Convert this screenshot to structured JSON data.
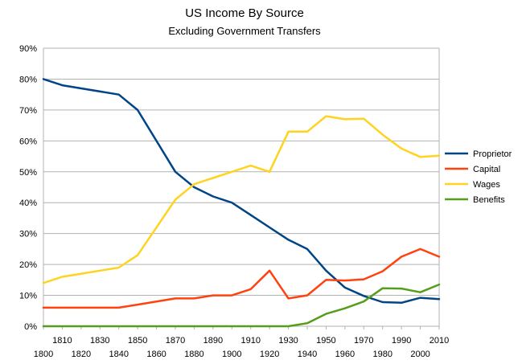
{
  "chart_data": {
    "type": "line",
    "title": "US Income By Source",
    "subtitle": "Excluding Government Transfers",
    "x_ticks": [
      1800,
      1810,
      1820,
      1830,
      1840,
      1850,
      1860,
      1870,
      1880,
      1890,
      1900,
      1910,
      1920,
      1930,
      1940,
      1950,
      1960,
      1970,
      1980,
      1990,
      2000,
      2010
    ],
    "x_tick_labels": [
      "1800",
      "1810",
      "1820",
      "1830",
      "1840",
      "1850",
      "1860",
      "1870",
      "1880",
      "1890",
      "1900",
      "1910",
      "1920",
      "1930",
      "1940",
      "1950",
      "1960",
      "1970",
      "1980",
      "1990",
      "2000",
      "2010"
    ],
    "xlim": [
      1800,
      2010
    ],
    "ylim": [
      0,
      90
    ],
    "y_ticks": [
      0,
      10,
      20,
      30,
      40,
      50,
      60,
      70,
      80,
      90
    ],
    "y_tick_labels": [
      "0%",
      "10%",
      "20%",
      "30%",
      "40%",
      "50%",
      "60%",
      "70%",
      "80%",
      "90%"
    ],
    "grid": true,
    "legend_position": "right",
    "series": [
      {
        "name": "Proprietor",
        "color": "#004586",
        "points": [
          [
            1800,
            80
          ],
          [
            1810,
            78
          ],
          [
            1840,
            75
          ],
          [
            1850,
            70
          ],
          [
            1870,
            50
          ],
          [
            1880,
            45
          ],
          [
            1890,
            42
          ],
          [
            1900,
            40
          ],
          [
            1910,
            36
          ],
          [
            1920,
            32
          ],
          [
            1930,
            28
          ],
          [
            1940,
            25
          ],
          [
            1950,
            18
          ],
          [
            1960,
            12.5
          ],
          [
            1970,
            9.8
          ],
          [
            1980,
            7.8
          ],
          [
            1990,
            7.6
          ],
          [
            2000,
            9.2
          ],
          [
            2010,
            8.8
          ]
        ]
      },
      {
        "name": "Capital",
        "color": "#ff420e",
        "points": [
          [
            1800,
            6
          ],
          [
            1840,
            6
          ],
          [
            1850,
            7
          ],
          [
            1870,
            9
          ],
          [
            1880,
            9
          ],
          [
            1890,
            10
          ],
          [
            1900,
            10
          ],
          [
            1910,
            12
          ],
          [
            1920,
            18
          ],
          [
            1930,
            9
          ],
          [
            1940,
            10
          ],
          [
            1950,
            15
          ],
          [
            1960,
            14.8
          ],
          [
            1970,
            15.2
          ],
          [
            1980,
            17.8
          ],
          [
            1990,
            22.5
          ],
          [
            2000,
            25
          ],
          [
            2010,
            22.5
          ]
        ]
      },
      {
        "name": "Wages",
        "color": "#ffd320",
        "points": [
          [
            1800,
            14
          ],
          [
            1810,
            16
          ],
          [
            1840,
            19
          ],
          [
            1850,
            23
          ],
          [
            1870,
            41
          ],
          [
            1880,
            46
          ],
          [
            1890,
            48
          ],
          [
            1900,
            50
          ],
          [
            1910,
            52
          ],
          [
            1920,
            50
          ],
          [
            1930,
            63
          ],
          [
            1940,
            63
          ],
          [
            1950,
            68
          ],
          [
            1960,
            67
          ],
          [
            1970,
            67.2
          ],
          [
            1980,
            62
          ],
          [
            1990,
            57.5
          ],
          [
            2000,
            54.8
          ],
          [
            2010,
            55.2
          ]
        ]
      },
      {
        "name": "Benefits",
        "color": "#579d1c",
        "points": [
          [
            1800,
            0
          ],
          [
            1930,
            0
          ],
          [
            1940,
            1
          ],
          [
            1950,
            4
          ],
          [
            1960,
            5.8
          ],
          [
            1970,
            8
          ],
          [
            1980,
            12.3
          ],
          [
            1990,
            12.2
          ],
          [
            2000,
            11
          ],
          [
            2010,
            13.5
          ]
        ]
      }
    ]
  }
}
